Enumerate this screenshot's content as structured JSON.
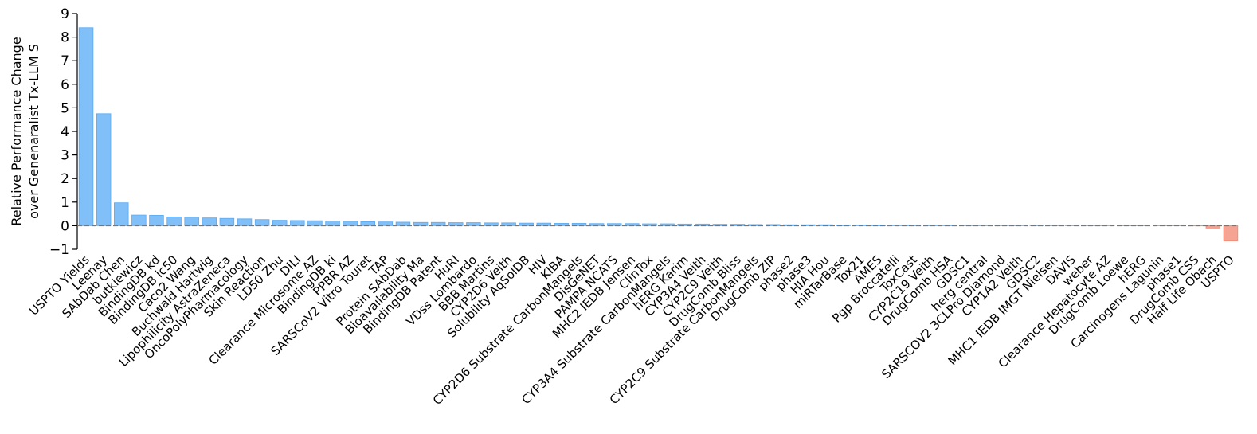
{
  "chart_data": {
    "type": "bar",
    "y_label": [
      "Relative Performance Change",
      "over Genenaralist Tx-LLM S"
    ],
    "categories": [
      "USPTO Yields",
      "Leenay",
      "SAbDab Chen",
      "butkiewicz",
      "BindingDB kd",
      "BindingDB ic50",
      "Caco2 Wang",
      "Buchwald Hartwig",
      "Lipophilicity AstraZeneca",
      "OncoPolyPharmacology",
      "Skin Reaction",
      "LD50 Zhu",
      "DILI",
      "Clearance Microsome AZ",
      "BindingDB ki",
      "PPBR AZ",
      "SARSCoV2 Vitro Touret",
      "TAP",
      "Protein SAbDab",
      "Bioavailability Ma",
      "BindingDB Patent",
      "HuRI",
      "VDss Lombardo",
      "BBB Martins",
      "CYP2D6 Veith",
      "Solubility AqSolDB",
      "HIV",
      "KIBA",
      "CYP2D6 Substrate CarbonMangels",
      "DisGeNET",
      "PAMPA NCATS",
      "MHC2 IEDB Jensen",
      "ClinTox",
      "CYP3A4 Substrate CarbonMangels",
      "hERG Karim",
      "CYP3A4 Veith",
      "CYP2C9 Veith",
      "DrugComb Bliss",
      "CYP2C9 Substrate CarbonMangels",
      "DrugComb ZIP",
      "phase2",
      "phase3",
      "HIA Hou",
      "miRTarBase",
      "Tox21",
      "AMES",
      "Pgp Broccatelli",
      "ToxCast",
      "CYP2C19 Veith",
      "DrugComb HSA",
      "GDSC1",
      "herg central",
      "SARSCOV2 3CLPro Diamond",
      "CYP1A2 Veith",
      "GDSC2",
      "MHC1 IEDB IMGT Nielsen",
      "DAVIS",
      "weber",
      "Clearance Hepatocyte AZ",
      "DrugComb Loewe",
      "hERG",
      "Carcinogens Lagunin",
      "phase1",
      "DrugComb CSS",
      "Half Life Obach",
      "USPTO"
    ],
    "values": [
      8.4,
      4.75,
      0.97,
      0.45,
      0.44,
      0.37,
      0.36,
      0.33,
      0.31,
      0.29,
      0.26,
      0.23,
      0.22,
      0.21,
      0.2,
      0.19,
      0.17,
      0.16,
      0.15,
      0.14,
      0.14,
      0.13,
      0.13,
      0.12,
      0.12,
      0.11,
      0.11,
      0.1,
      0.1,
      0.09,
      0.09,
      0.09,
      0.08,
      0.08,
      0.07,
      0.07,
      0.06,
      0.06,
      0.05,
      0.05,
      0.04,
      0.04,
      0.04,
      0.03,
      0.03,
      0.03,
      0.02,
      0.02,
      0.02,
      0.02,
      0.01,
      0.01,
      0.01,
      0.01,
      0.01,
      0.005,
      0.004,
      0.003,
      0.003,
      0.002,
      0.002,
      0.001,
      0.001,
      -0.01,
      -0.1,
      -0.65
    ],
    "color": "#80bff8",
    "negative_color": "#f5a393",
    "ylim": [
      -1,
      9
    ],
    "yticks": [
      {
        "value": -1,
        "label": "−1"
      },
      0,
      1,
      2,
      3,
      4,
      5,
      6,
      7,
      8,
      9
    ]
  }
}
